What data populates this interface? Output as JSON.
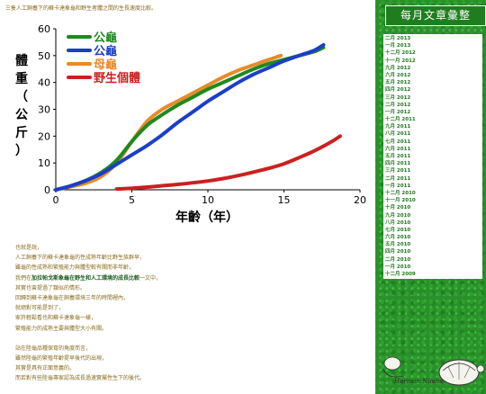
{
  "intro": "三隻人工飼養下的蘇卡達象龜和野生者體之間的生長速度比較。",
  "chart_data": {
    "type": "line",
    "ylabel": "體重（公斤）",
    "xlabel": "年齡（年）",
    "xlim": [
      0,
      20
    ],
    "ylim": [
      0,
      60
    ],
    "xticks": [
      "0",
      "5",
      "10",
      "15",
      "20"
    ],
    "yticks": [
      "0",
      "10",
      "20",
      "30",
      "40",
      "50",
      "60"
    ],
    "legend_position": "top-left",
    "series": [
      {
        "name": "公龜",
        "color": "#1e8a1e",
        "x": [
          0,
          1,
          2,
          3,
          4,
          5,
          6,
          7,
          8,
          9,
          10,
          11,
          12,
          13,
          14,
          15,
          16,
          17,
          17.6
        ],
        "y": [
          0,
          1.5,
          3.5,
          6.5,
          11,
          18,
          24,
          28,
          31.5,
          34.5,
          37.5,
          40,
          42.5,
          45,
          47,
          48.5,
          50,
          51.5,
          53
        ]
      },
      {
        "name": "公龜",
        "color": "#1c3ec9",
        "x": [
          0,
          1,
          2,
          3,
          4,
          5,
          6,
          7,
          8,
          9,
          10,
          11,
          12,
          13,
          14,
          15,
          16,
          17,
          17.6
        ],
        "y": [
          0,
          1.5,
          3.5,
          6,
          9.5,
          13,
          16.5,
          20.5,
          25,
          29,
          33,
          36.5,
          40,
          43,
          45.5,
          48,
          50,
          52,
          54
        ]
      },
      {
        "name": "母龜",
        "color": "#e88a2a",
        "x": [
          0,
          1,
          2,
          3,
          4,
          5,
          6,
          7,
          8,
          9,
          10,
          11,
          12,
          13,
          14,
          14.8
        ],
        "y": [
          0,
          1.2,
          2.5,
          5,
          10,
          18,
          25.5,
          30,
          33,
          36,
          39,
          42,
          44.5,
          46.5,
          48.5,
          50
        ]
      },
      {
        "name": "野生個體",
        "color": "#cc2020",
        "x": [
          4,
          5,
          6,
          7,
          8,
          9,
          10,
          11,
          12,
          13,
          14,
          15,
          16,
          17,
          18,
          18.7
        ],
        "y": [
          0.3,
          0.6,
          1,
          1.5,
          2,
          2.6,
          3.3,
          4.2,
          5.3,
          6.6,
          8,
          9.7,
          12,
          14.5,
          17.5,
          20
        ]
      }
    ]
  },
  "article": {
    "p1": "也就是說，",
    "p2": "人工飼養下的蘇卡達象龜的性成熟年齡比野生族群早，",
    "p3": "雖龜的性成熟和繁殖能力與體型較有關而非年齡，",
    "p4_pre": "我們在",
    "p4_link": "加拉帕戈斯象龜在野生和人工環境的成長比較",
    "p4_post": "一文中，",
    "p5": "其實也曾提過了類似的情形。",
    "p6": "回歸到蘇卡達象龜在飼養環境三年的時間裡內，",
    "p7": "就絕對可能是到了，",
    "p8": "家許輕鬆看也和蘇卡達象龜一樣，",
    "p9": "繁殖能力的成熟主要與體型大小有關。",
    "p10": "站在陸龜品種保育的角度而言，",
    "p11": "雖然陸龜的繁殖年齡提早後代的出現，",
    "p12": "其實是具有正面意義的。",
    "p13": "而若對有些陸龜專家認為成長過速實屬性生下的後代。"
  },
  "sidebar": {
    "title": "每月文章彙整",
    "archive": [
      "二月 2013",
      "一月 2013",
      "十二月 2012",
      "十一月 2012",
      "九月 2012",
      "六月 2012",
      "五月 2012",
      "四月 2012",
      "三月 2012",
      "二月 2012",
      "一月 2012",
      "十二月 2011",
      "九月 2011",
      "八月 2011",
      "七月 2011",
      "六月 2011",
      "五月 2011",
      "四月 2011",
      "三月 2011",
      "二月 2011",
      "一月 2011",
      "十二月 2010",
      "十一月 2010",
      "十月 2010",
      "九月 2010",
      "八月 2010",
      "七月 2010",
      "六月 2010",
      "五月 2010",
      "四月 2010",
      "二月 2010",
      "一月 2010",
      "十二月 2009"
    ],
    "watermark": "Herman Nuebe"
  }
}
